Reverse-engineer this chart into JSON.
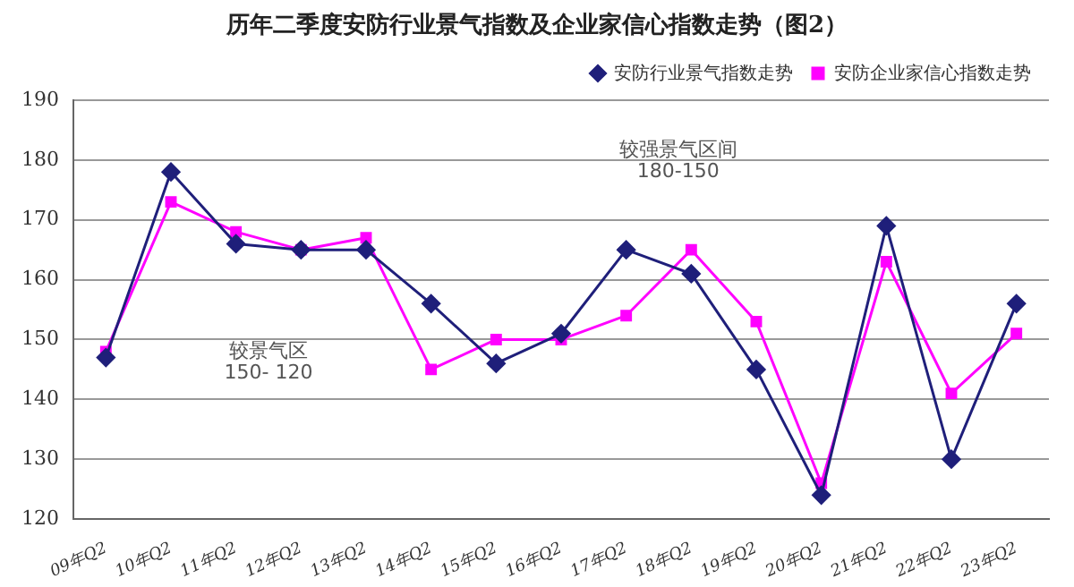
{
  "chart_data": {
    "type": "line",
    "title": "历年二季度安防行业景气指数及企业家信心指数走势（图2）",
    "categories": [
      "09年Q2",
      "10年Q2",
      "11年Q2",
      "12年Q2",
      "13年Q2",
      "14年Q2",
      "15年Q2",
      "16年Q2",
      "17年Q2",
      "18年Q2",
      "19年Q2",
      "20年Q2",
      "21年Q2",
      "22年Q2",
      "23年Q2"
    ],
    "series": [
      {
        "name": "安防行业景气指数走势",
        "color": "#1f1f7a",
        "marker": "diamond",
        "values": [
          147,
          178,
          166,
          165,
          165,
          156,
          146,
          151,
          165,
          161,
          145,
          124,
          169,
          130,
          156
        ]
      },
      {
        "name": "安防企业家信心指数走势",
        "color": "#ff00ff",
        "marker": "square",
        "values": [
          148,
          173,
          168,
          165,
          167,
          145,
          150,
          150,
          154,
          165,
          153,
          126,
          163,
          141,
          151
        ]
      }
    ],
    "ylim": [
      120,
      190
    ],
    "yticks": [
      120,
      130,
      140,
      150,
      160,
      170,
      180,
      190
    ],
    "grid": "y",
    "legend": "top right",
    "annotations": [
      "较强景气区间\n180-150",
      "较景气区\n150- 120"
    ]
  }
}
